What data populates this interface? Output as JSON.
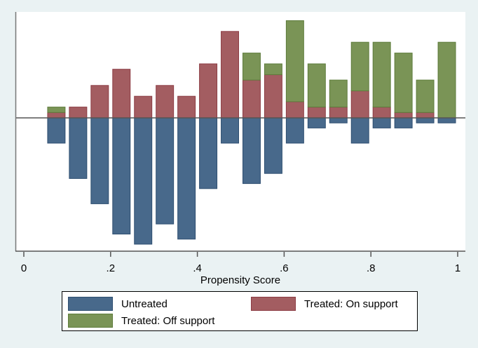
{
  "chart_data": {
    "type": "bar",
    "subtype": "mirrored-stacked-histogram",
    "title": "",
    "xlabel": "Propensity Score",
    "ylabel": "",
    "xlim": [
      0,
      1
    ],
    "xticks": [
      0,
      0.2,
      0.4,
      0.6,
      0.8,
      1
    ],
    "xtick_labels": [
      "0",
      ".2",
      ".4",
      ".6",
      ".8",
      "1"
    ],
    "y_axis_labels_shown": false,
    "bin_width": 0.05,
    "x": [
      0.075,
      0.125,
      0.175,
      0.225,
      0.275,
      0.325,
      0.375,
      0.425,
      0.475,
      0.525,
      0.575,
      0.625,
      0.675,
      0.725,
      0.775,
      0.825,
      0.875,
      0.925,
      0.975
    ],
    "series": [
      {
        "name": "Untreated",
        "color": "#48698b",
        "direction": "below",
        "values": [
          5,
          12,
          17,
          23,
          25,
          21,
          24,
          14,
          5,
          13,
          11,
          5,
          2,
          1,
          5,
          2,
          2,
          1,
          1
        ]
      },
      {
        "name": "Treated: On support",
        "color": "#a35d61",
        "direction": "above",
        "values": [
          1,
          2,
          6,
          9,
          4,
          6,
          4,
          10,
          16,
          7,
          8,
          3,
          2,
          2,
          5,
          2,
          1,
          1,
          0
        ]
      },
      {
        "name": "Treated: Off support",
        "color": "#7a9456",
        "direction": "above",
        "stacked_on": "Treated: On support",
        "values": [
          1,
          0,
          0,
          0,
          0,
          0,
          0,
          0,
          0,
          5,
          2,
          15,
          8,
          5,
          9,
          12,
          11,
          6,
          14
        ]
      }
    ],
    "legend": {
      "position": "bottom",
      "entries": [
        "Untreated",
        "Treated: On support",
        "Treated: Off support"
      ]
    },
    "grid": false
  }
}
